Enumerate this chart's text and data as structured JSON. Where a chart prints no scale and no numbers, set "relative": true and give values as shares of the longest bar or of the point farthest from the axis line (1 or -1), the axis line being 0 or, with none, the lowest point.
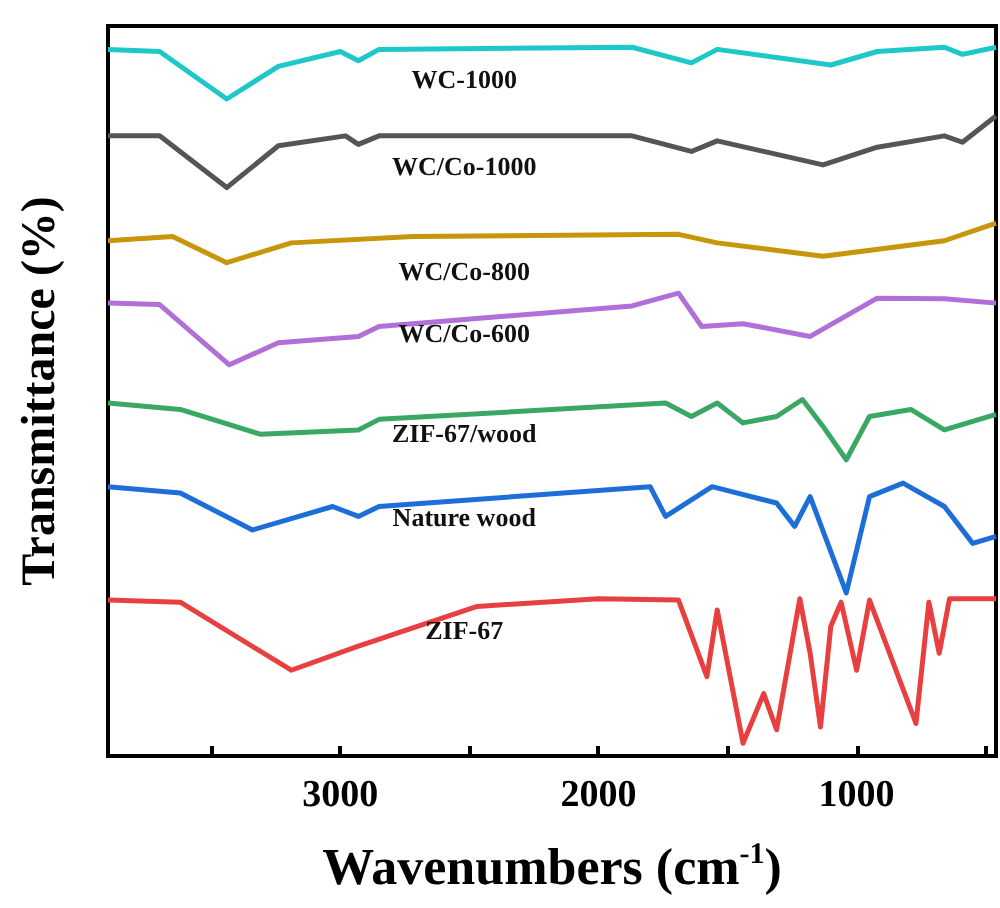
{
  "chart_data": {
    "type": "line",
    "relative": true,
    "xlabel": "Wavenumbers (cm$^{-1}$)",
    "ylabel": "Transmittance (%)",
    "xlim": [
      3900,
      460
    ],
    "xticks": [
      {
        "value": 3500,
        "label": null
      },
      3000,
      {
        "value": 2500,
        "label": null
      },
      2000,
      {
        "value": 1500,
        "label": null
      },
      1000,
      {
        "value": 500,
        "label": null
      }
    ],
    "grid": false,
    "legend": false,
    "marker": "none",
    "line_style": "solid",
    "series": [
      {
        "name": "WC-1000",
        "color": "#1ec8c8",
        "x": [
          3900,
          3700,
          3440,
          3240,
          3000,
          2930,
          2850,
          1870,
          1640,
          1540,
          1100,
          920,
          660,
          590,
          460
        ],
        "values": [
          0.997,
          0.994,
          0.927,
          0.973,
          0.994,
          0.981,
          0.997,
          1.0,
          0.978,
          0.997,
          0.975,
          0.994,
          1.0,
          0.99,
          1.0
        ]
      },
      {
        "name": "WC/Co-1000",
        "color": "#555555",
        "x": [
          3900,
          3700,
          3440,
          3240,
          2980,
          2930,
          2850,
          1870,
          1640,
          1540,
          1130,
          920,
          660,
          590,
          460
        ],
        "values": [
          0.875,
          0.875,
          0.802,
          0.861,
          0.875,
          0.863,
          0.875,
          0.875,
          0.853,
          0.868,
          0.834,
          0.859,
          0.875,
          0.866,
          0.903
        ]
      },
      {
        "name": "WC/Co-800",
        "color": "#c8960a",
        "x": [
          3900,
          3650,
          3440,
          3190,
          2720,
          1690,
          1540,
          1130,
          660,
          460
        ],
        "values": [
          0.727,
          0.733,
          0.696,
          0.724,
          0.733,
          0.736,
          0.724,
          0.705,
          0.727,
          0.752
        ]
      },
      {
        "name": "WC/Co-600",
        "color": "#b070d8",
        "x": [
          3900,
          3700,
          3430,
          3240,
          2930,
          2850,
          1870,
          1690,
          1600,
          1440,
          1180,
          920,
          660,
          460
        ],
        "values": [
          0.639,
          0.637,
          0.552,
          0.583,
          0.592,
          0.606,
          0.635,
          0.653,
          0.606,
          0.61,
          0.592,
          0.646,
          0.645,
          0.639
        ]
      },
      {
        "name": "ZIF-67/wood",
        "color": "#3aa862",
        "x": [
          3900,
          3620,
          3310,
          2930,
          2850,
          1740,
          1640,
          1540,
          1440,
          1310,
          1210,
          1130,
          1040,
          950,
          790,
          660,
          460
        ],
        "values": [
          0.498,
          0.489,
          0.454,
          0.46,
          0.475,
          0.498,
          0.479,
          0.498,
          0.47,
          0.479,
          0.503,
          0.465,
          0.418,
          0.479,
          0.489,
          0.46,
          0.482
        ]
      },
      {
        "name": "Nature wood",
        "color": "#1e6ed8",
        "x": [
          3900,
          3620,
          3340,
          3030,
          2930,
          2850,
          1800,
          1740,
          1560,
          1310,
          1240,
          1180,
          1040,
          950,
          820,
          660,
          550,
          460
        ],
        "values": [
          0.38,
          0.371,
          0.319,
          0.352,
          0.338,
          0.352,
          0.38,
          0.338,
          0.38,
          0.357,
          0.324,
          0.366,
          0.23,
          0.366,
          0.385,
          0.352,
          0.3,
          0.31
        ]
      },
      {
        "name": "ZIF-67",
        "color": "#e84040",
        "x": [
          3900,
          3620,
          3190,
          2930,
          2470,
          2000,
          1690,
          1580,
          1540,
          1440,
          1360,
          1310,
          1220,
          1180,
          1140,
          1100,
          1060,
          1000,
          950,
          770,
          720,
          680,
          640,
          460
        ],
        "values": [
          0.22,
          0.217,
          0.121,
          0.155,
          0.211,
          0.222,
          0.22,
          0.112,
          0.206,
          0.018,
          0.088,
          0.037,
          0.222,
          0.145,
          0.041,
          0.183,
          0.217,
          0.121,
          0.22,
          0.046,
          0.217,
          0.145,
          0.222,
          0.222
        ]
      }
    ]
  }
}
